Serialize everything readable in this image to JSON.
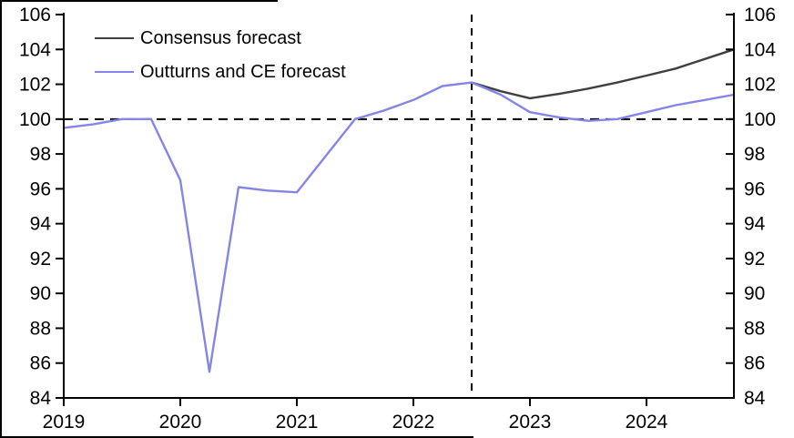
{
  "legend": {
    "items": [
      {
        "label": "Consensus forecast",
        "color": "#404040"
      },
      {
        "label": "Outturns and CE forecast",
        "color": "#8585E8"
      }
    ]
  },
  "chart_data": {
    "type": "line",
    "title": "",
    "xlabel": "",
    "ylabel": "",
    "xlim": [
      2019.0,
      2024.75
    ],
    "ylim": [
      84,
      106
    ],
    "grid": false,
    "legend_position": "top-left",
    "xticks": [
      2019,
      2020,
      2021,
      2022,
      2023,
      2024
    ],
    "yticks": [
      84,
      86,
      88,
      90,
      92,
      94,
      96,
      98,
      100,
      102,
      104,
      106
    ],
    "y_axis_sides": "both",
    "reference_lines": {
      "horizontal_y": 100,
      "vertical_x": 2022.5
    },
    "series": [
      {
        "name": "Consensus forecast",
        "color": "#404040",
        "x": [
          2022.5,
          2022.75,
          2023.0,
          2023.25,
          2023.5,
          2023.75,
          2024.0,
          2024.25,
          2024.5,
          2024.75
        ],
        "values": [
          102.1,
          101.6,
          101.2,
          101.45,
          101.75,
          102.1,
          102.5,
          102.9,
          103.45,
          104.0
        ]
      },
      {
        "name": "Outturns and CE forecast",
        "color": "#8585E8",
        "x": [
          2019.0,
          2019.25,
          2019.5,
          2019.75,
          2020.0,
          2020.25,
          2020.5,
          2020.75,
          2021.0,
          2021.25,
          2021.5,
          2021.75,
          2022.0,
          2022.25,
          2022.5,
          2022.75,
          2023.0,
          2023.25,
          2023.5,
          2023.75,
          2024.0,
          2024.25,
          2024.5,
          2024.75
        ],
        "values": [
          99.5,
          99.7,
          100.0,
          100.0,
          96.5,
          85.5,
          96.1,
          95.9,
          95.8,
          97.9,
          100.0,
          100.5,
          101.1,
          101.9,
          102.1,
          101.4,
          100.4,
          100.1,
          99.9,
          100.0,
          100.4,
          100.8,
          101.1,
          101.4
        ]
      }
    ]
  }
}
